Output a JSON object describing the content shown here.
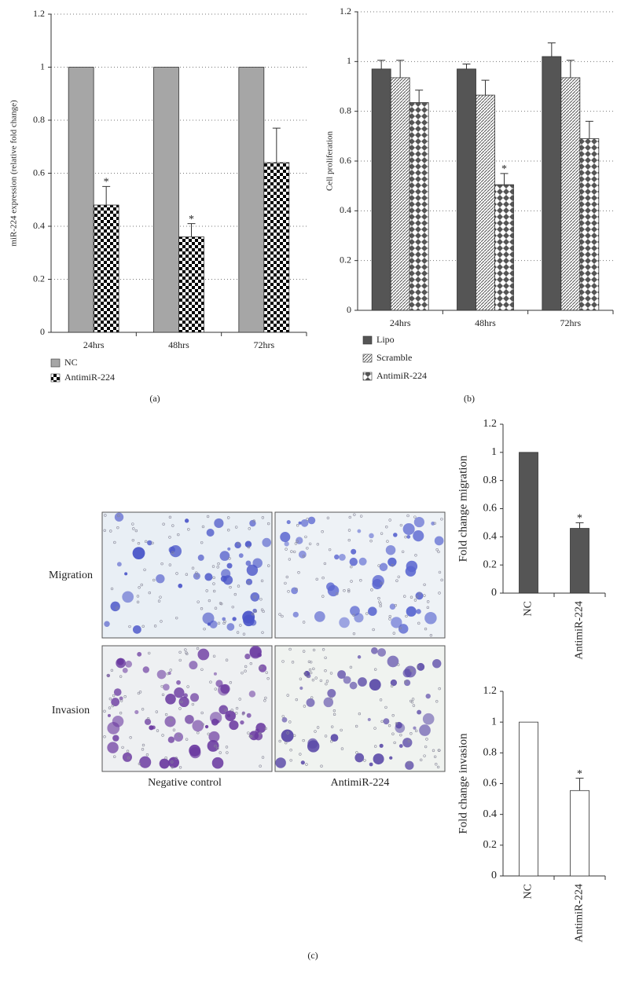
{
  "figure": {
    "panel_labels": [
      "(a)",
      "(b)",
      "(c)"
    ],
    "row_labels": [
      "Migration",
      "Invasion"
    ],
    "column_labels": [
      "Negative control",
      "AntimiR-224"
    ]
  },
  "chart_data": [
    {
      "type": "bar",
      "ylabel": "miR-224 expression (relative fold change)",
      "categories": [
        "24hrs",
        "48hrs",
        "72hrs"
      ],
      "series": [
        {
          "name": "NC",
          "color": "#a6a6a6",
          "values": [
            1,
            1,
            1
          ]
        },
        {
          "name": "AntimiR-224",
          "color": "#000000",
          "pattern": "checker",
          "values": [
            0.48,
            0.36,
            0.64
          ],
          "errors": [
            0.07,
            0.05,
            0.13
          ],
          "annotations": [
            "*",
            "*",
            null
          ]
        }
      ],
      "ylim": [
        0,
        1.2
      ],
      "yticks": [
        0,
        0.2,
        0.4,
        0.6,
        0.8,
        1,
        1.2
      ],
      "grid": true,
      "legend": "bottom"
    },
    {
      "type": "bar",
      "ylabel": "Cell proliferation",
      "categories": [
        "24hrs",
        "48hrs",
        "72hrs"
      ],
      "series": [
        {
          "name": "Lipo",
          "color": "#555555",
          "values": [
            0.97,
            0.97,
            1.02
          ],
          "errors": [
            0.035,
            0.02,
            0.055
          ]
        },
        {
          "name": "Scramble",
          "color": "#555555",
          "pattern": "hatch",
          "values": [
            0.935,
            0.865,
            0.935
          ],
          "errors": [
            0.07,
            0.06,
            0.07
          ]
        },
        {
          "name": "AntimiR-224",
          "color": "#555555",
          "pattern": "diamond",
          "values": [
            0.835,
            0.505,
            0.69
          ],
          "errors": [
            0.05,
            0.045,
            0.07
          ],
          "annotations": [
            null,
            "*",
            null
          ]
        }
      ],
      "ylim": [
        0,
        1.2
      ],
      "yticks": [
        0,
        0.2,
        0.4,
        0.6,
        0.8,
        1,
        1.2
      ],
      "grid": true,
      "legend": "bottom"
    },
    {
      "type": "bar",
      "ylabel": "Fold change migration",
      "categories": [
        "NC",
        "AntimiR-224"
      ],
      "color": "#555555",
      "values": [
        1,
        0.46
      ],
      "errors": [
        null,
        0.04
      ],
      "annotations": [
        null,
        "*"
      ],
      "ylim": [
        0,
        1.2
      ],
      "yticks": [
        0,
        0.2,
        0.4,
        0.6,
        0.8,
        1,
        1.2
      ],
      "grid": false
    },
    {
      "type": "bar",
      "ylabel": "Fold change invasion",
      "categories": [
        "NC",
        "AntimiR-224"
      ],
      "color": "#ffffff",
      "values": [
        1,
        0.555
      ],
      "errors": [
        null,
        0.08
      ],
      "annotations": [
        null,
        "*"
      ],
      "ylim": [
        0,
        1.2
      ],
      "yticks": [
        0,
        0.2,
        0.4,
        0.6,
        0.8,
        1,
        1.2
      ],
      "grid": false
    }
  ]
}
